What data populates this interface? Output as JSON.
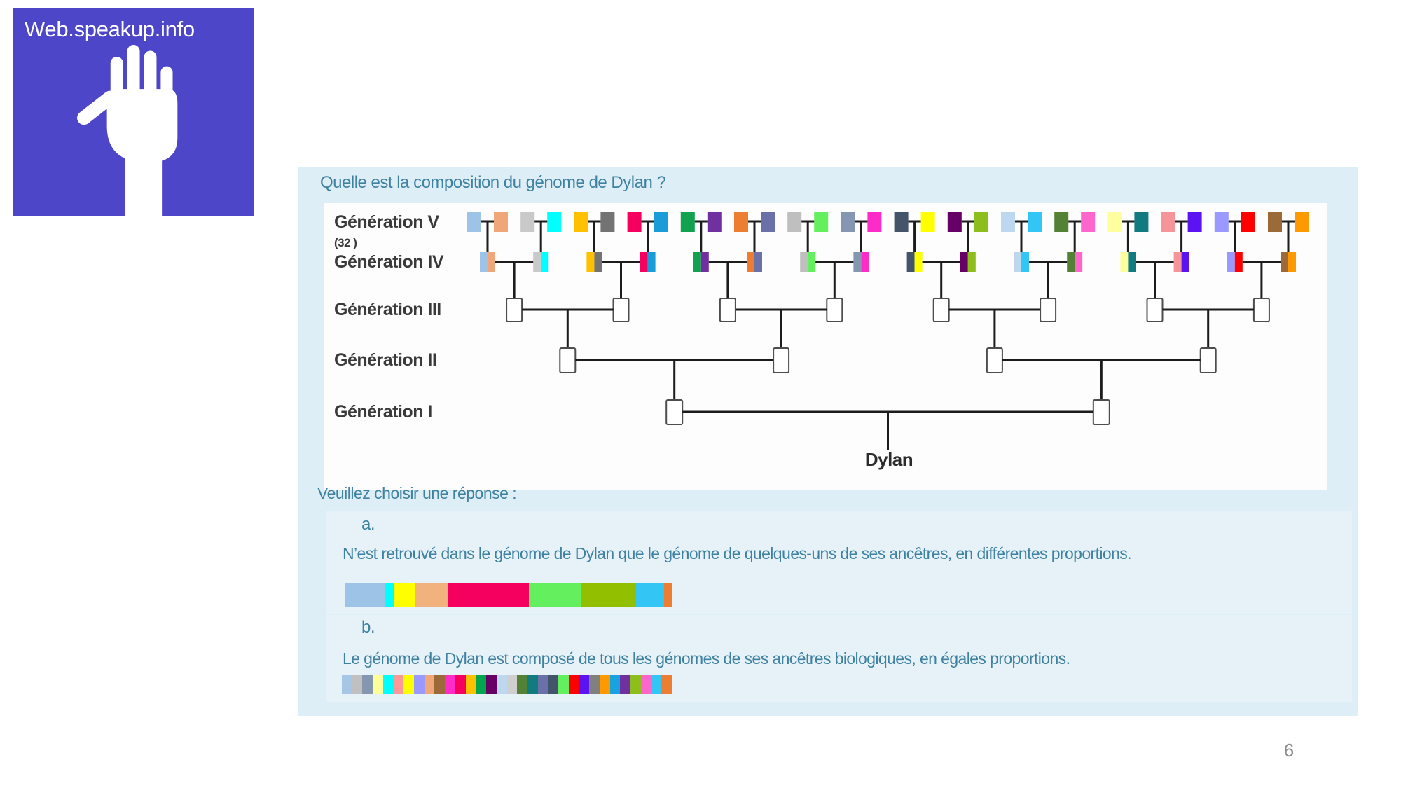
{
  "logo": {
    "title": "Web.speakup.info",
    "background": "#4e46c8"
  },
  "question": "Quelle est la composition du génome de Dylan ?",
  "diagram": {
    "generation_labels": [
      "Génération V",
      "Génération IV",
      "Génération III",
      "Génération II",
      "Génération I"
    ],
    "generation5_count": "(32 )",
    "dylan_label": "Dylan",
    "generation5_colors": [
      "#9dc3e6",
      "#efa779",
      "#c9c9c9",
      "#00ffff",
      "#ffc000",
      "#737373",
      "#f6005f",
      "#189dd9",
      "#10a24e",
      "#7030a0",
      "#ed7d31",
      "#6a70a8",
      "#bfbfbf",
      "#64f05e",
      "#8496b0",
      "#fd2cc8",
      "#44546a",
      "#ffff00",
      "#660066",
      "#8ebe1b",
      "#bdd7ee",
      "#33c6f4",
      "#538135",
      "#ff66cc",
      "#ffff9d",
      "#127b80",
      "#f59599",
      "#5c13f2",
      "#9999ff",
      "#ff0000",
      "#9c6a38",
      "#ff9900"
    ]
  },
  "prompt": "Veuillez choisir une réponse :",
  "options": [
    {
      "key": "a.",
      "text": "N’est retrouvé dans le génome de Dylan que le génome de quelques-uns de ses ancêtres, en différentes proportions.",
      "bar_segments": [
        {
          "color": "#9dc3e6",
          "percent": 12.4
        },
        {
          "color": "#00ffff",
          "percent": 2.8
        },
        {
          "color": "#ffff00",
          "percent": 6.2
        },
        {
          "color": "#f2b27e",
          "percent": 10.3
        },
        {
          "color": "#f6005f",
          "percent": 24.6
        },
        {
          "color": "#64f05e",
          "percent": 16.0
        },
        {
          "color": "#92c001",
          "percent": 16.7
        },
        {
          "color": "#33c6f4",
          "percent": 8.5
        },
        {
          "color": "#ed7d31",
          "percent": 2.5
        }
      ]
    },
    {
      "key": "b.",
      "text": "Le génome de Dylan est composé de tous les génomes de ses ancêtres biologiques, en égales proportions.",
      "bar_equal_colors": [
        "#a5c6e4",
        "#c0c0c0",
        "#8496b0",
        "#ffff99",
        "#00ffff",
        "#ff9999",
        "#ffff00",
        "#9999ff",
        "#f0a878",
        "#9c6a38",
        "#fd2cc8",
        "#f6005f",
        "#ffc000",
        "#00a64e",
        "#660066",
        "#bdd7ee",
        "#d0cece",
        "#538135",
        "#127b80",
        "#6a70a8",
        "#44546a",
        "#64f05e",
        "#ff0000",
        "#5c13f2",
        "#808080",
        "#ff9900",
        "#18a3e0",
        "#7030a0",
        "#8ebe1b",
        "#ff66cc",
        "#33c6f4",
        "#ed7d31"
      ]
    }
  ],
  "page_number": "6",
  "colors": {
    "panel_bg": "#ddeef6",
    "teal_text": "#3f81a1",
    "line": "#1c1c1c"
  }
}
